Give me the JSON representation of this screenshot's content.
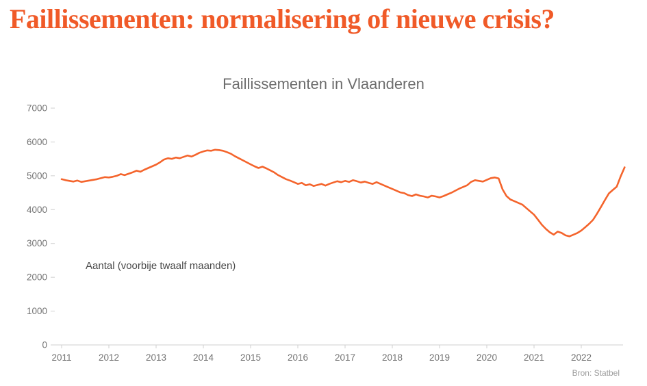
{
  "headline": {
    "text": "Faillissementen: normalisering of nieuwe crisis?"
  },
  "source": {
    "text": "Bron: Statbel"
  },
  "colors": {
    "headline": "#f05a28",
    "line": "#f4642c",
    "axis": "#cfcfcf",
    "tick_text": "#737373"
  },
  "chart_data": {
    "type": "line",
    "title": "Faillissementen in Vlaanderen",
    "annotation": "Aantal (voorbije twaalf maanden)",
    "series": [
      {
        "name": "Faillissementen in Vlaanderen (voorbije twaalf maanden)",
        "values": [
          4900,
          4870,
          4850,
          4830,
          4860,
          4820,
          4840,
          4860,
          4880,
          4900,
          4930,
          4960,
          4950,
          4970,
          5000,
          5050,
          5020,
          5060,
          5100,
          5150,
          5120,
          5180,
          5230,
          5280,
          5330,
          5400,
          5480,
          5520,
          5500,
          5540,
          5520,
          5560,
          5600,
          5570,
          5620,
          5680,
          5720,
          5750,
          5740,
          5770,
          5760,
          5740,
          5700,
          5650,
          5580,
          5520,
          5460,
          5400,
          5340,
          5280,
          5230,
          5270,
          5220,
          5160,
          5100,
          5020,
          4960,
          4900,
          4860,
          4810,
          4760,
          4790,
          4720,
          4750,
          4700,
          4730,
          4760,
          4710,
          4760,
          4800,
          4840,
          4810,
          4850,
          4820,
          4870,
          4840,
          4800,
          4830,
          4790,
          4760,
          4810,
          4760,
          4710,
          4660,
          4610,
          4560,
          4510,
          4490,
          4430,
          4400,
          4450,
          4410,
          4390,
          4360,
          4410,
          4390,
          4360,
          4400,
          4450,
          4500,
          4560,
          4620,
          4670,
          4720,
          4820,
          4870,
          4850,
          4830,
          4880,
          4930,
          4950,
          4920,
          4600,
          4400,
          4300,
          4250,
          4200,
          4150,
          4050,
          3950,
          3850,
          3700,
          3550,
          3430,
          3330,
          3260,
          3350,
          3310,
          3240,
          3210,
          3260,
          3310,
          3380,
          3480,
          3580,
          3700,
          3880,
          4080,
          4280,
          4480,
          4580,
          4680,
          4980,
          5250
        ]
      }
    ],
    "x_unit": "month",
    "x_start_year": 2011,
    "x_ticks": [
      2011,
      2012,
      2013,
      2014,
      2015,
      2016,
      2017,
      2018,
      2019,
      2020,
      2021,
      2022
    ],
    "y_ticks": [
      0,
      1000,
      2000,
      3000,
      4000,
      5000,
      6000,
      7000
    ],
    "ylim": [
      0,
      7000
    ],
    "grid": false,
    "legend": "none"
  }
}
